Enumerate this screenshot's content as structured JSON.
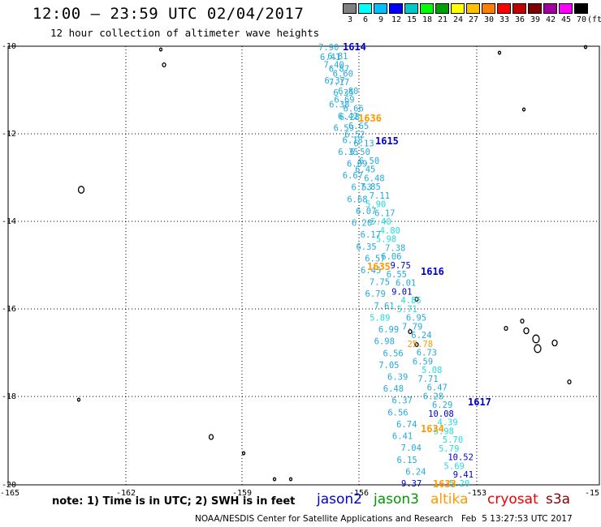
{
  "header": {
    "title": "12:00 – 23:59 UTC 02/04/2017",
    "subtitle": "12 hour collection of altimeter wave heights"
  },
  "color_scale": {
    "unit": "(ft)",
    "labels": [
      "3",
      "6",
      "9",
      "12",
      "15",
      "18",
      "21",
      "24",
      "27",
      "30",
      "33",
      "36",
      "39",
      "42",
      "45",
      "70"
    ],
    "colors": [
      "#808080",
      "#00ffff",
      "#00bfff",
      "#0000ff",
      "#00c8c8",
      "#00ff00",
      "#00a000",
      "#ffff00",
      "#ffc000",
      "#ff8000",
      "#ff0000",
      "#c00000",
      "#800000",
      "#a000a0",
      "#ff00ff",
      "#000000"
    ]
  },
  "axes": {
    "lat_labels": [
      "-10",
      "-12",
      "-14",
      "-16",
      "-18",
      "-20"
    ],
    "lon_labels": [
      "-165",
      "-162",
      "-159",
      "-156",
      "-153",
      "-15"
    ]
  },
  "tracks": [
    {
      "satellite": "jason2",
      "pass_label": "1614",
      "color": "#0000cc"
    },
    {
      "satellite": "altika",
      "pass_label": "1636",
      "color": "#ff9900"
    },
    {
      "satellite": "jason2",
      "pass_label": "1615",
      "color": "#0000cc"
    },
    {
      "satellite": "altika",
      "pass_label": "1635",
      "color": "#ff9900"
    },
    {
      "satellite": "jason2",
      "pass_label": "1616",
      "color": "#0000cc"
    },
    {
      "satellite": "jason2",
      "pass_label": "1617",
      "color": "#0000cc"
    },
    {
      "satellite": "altika",
      "pass_label": "1634",
      "color": "#ff9900"
    },
    {
      "satellite": "altika",
      "pass_label": "1633",
      "color": "#ff9900"
    }
  ],
  "wave_heights": {
    "track_a": [
      "7.90",
      "6.81",
      "7.40",
      "6.60",
      "7.17",
      "6.80",
      "6.69",
      "6.66",
      "6.28",
      "6.65",
      "6.52",
      "6.13",
      "6.50",
      "6.50",
      "6.45",
      "6.48",
      "7.85",
      "7.11",
      "5.90",
      "6.17",
      "5.40",
      "4.80",
      "5.98",
      "7.38",
      "6.06",
      "9.75",
      "6.55",
      "6.01",
      "9.01",
      "4.85",
      "5.71",
      "6.95",
      "7.79",
      "6.24",
      "25.78",
      "6.73",
      "6.59",
      "5.08",
      "7.71",
      "6.47",
      "6.28",
      "6.29",
      "10.08",
      "4.39",
      "5.98",
      "5.70",
      "5.79",
      "10.52",
      "5.69",
      "9.41",
      "5.20"
    ],
    "track_b": [
      "6.41",
      "6.87",
      "6.37",
      "6.35",
      "6.38",
      "6.42",
      "6.59",
      "6.18",
      "6.35",
      "6.09",
      "6.67",
      "6.53",
      "6.68",
      "6.07",
      "6.20",
      "6.17",
      "6.35",
      "6.57",
      "6.45",
      "7.75",
      "6.79",
      "7.61",
      "5.89",
      "6.99",
      "6.98",
      "6.56",
      "7.05",
      "6.39",
      "6.48",
      "6.37",
      "6.56",
      "6.74",
      "6.41",
      "7.04",
      "6.15",
      "6.24",
      "9.37"
    ]
  },
  "footer": {
    "note": "note: 1) Time is in UTC; 2) SWH is in feet",
    "satellites": [
      {
        "name": "jason2",
        "color": "#0000cc"
      },
      {
        "name": "jason3",
        "color": "#009900"
      },
      {
        "name": "altika",
        "color": "#ff9900"
      },
      {
        "name": "cryosat",
        "color": "#ee0000"
      },
      {
        "name": "s3a",
        "color": "#880000"
      }
    ],
    "credit": "NOAA/NESDIS Center for Satellite Applications and Research   Feb  5 13:27:53 UTC 2017"
  }
}
